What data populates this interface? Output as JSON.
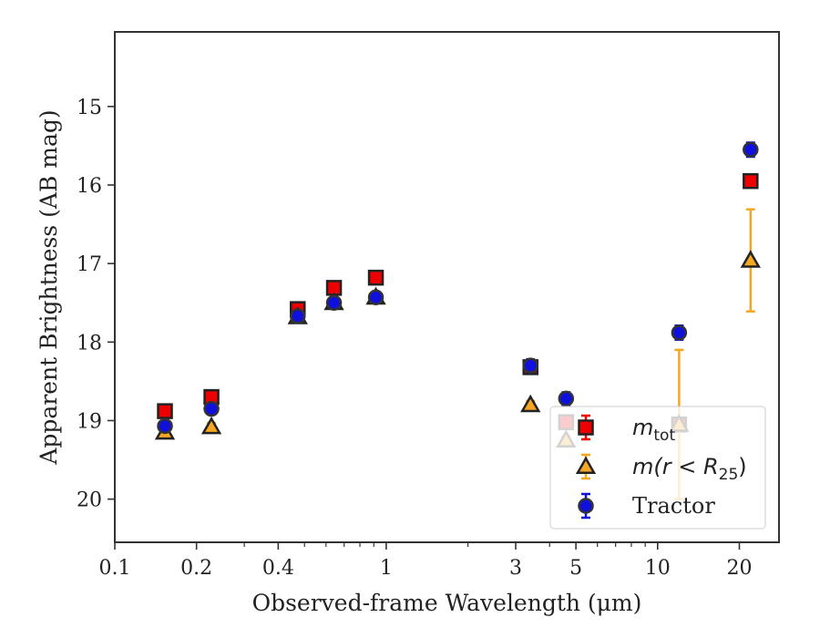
{
  "chart_data": {
    "type": "scatter",
    "xlabel": "Observed-frame Wavelength (μm)",
    "ylabel": "Apparent Brightness (AB mag)",
    "xscale": "log",
    "xlim": [
      0.1,
      28
    ],
    "ylim": [
      20.55,
      14.05
    ],
    "y_inverted": true,
    "x_ticks": [
      {
        "value": 0.1,
        "label": "0.1"
      },
      {
        "value": 0.2,
        "label": "0.2"
      },
      {
        "value": 0.4,
        "label": "0.4"
      },
      {
        "value": 1,
        "label": "1"
      },
      {
        "value": 3,
        "label": "3"
      },
      {
        "value": 5,
        "label": "5"
      },
      {
        "value": 10,
        "label": "10"
      },
      {
        "value": 20,
        "label": "20"
      }
    ],
    "y_ticks": [
      {
        "value": 15,
        "label": "15"
      },
      {
        "value": 16,
        "label": "16"
      },
      {
        "value": 17,
        "label": "17"
      },
      {
        "value": 18,
        "label": "18"
      },
      {
        "value": 19,
        "label": "19"
      },
      {
        "value": 20,
        "label": "20"
      }
    ],
    "legend_position": "lower-right",
    "series": [
      {
        "name": "m_tot",
        "legend_label": "m",
        "legend_sub": "tot",
        "marker": "square",
        "color": "#ee0000",
        "points": [
          {
            "x": 0.153,
            "y": 18.88,
            "err": 0.05
          },
          {
            "x": 0.227,
            "y": 18.7,
            "err": 0.05
          },
          {
            "x": 0.472,
            "y": 17.58,
            "err": 0.05
          },
          {
            "x": 0.642,
            "y": 17.31,
            "err": 0.05
          },
          {
            "x": 0.916,
            "y": 17.18,
            "err": 0.05
          },
          {
            "x": 3.4,
            "y": 18.32,
            "err": 0.05
          },
          {
            "x": 4.6,
            "y": 19.02,
            "err": 0.05
          },
          {
            "x": 12.0,
            "y": 19.05,
            "err": 0.05
          },
          {
            "x": 22.0,
            "y": 15.95,
            "err": 0.05
          }
        ]
      },
      {
        "name": "m(r < R25)",
        "legend_label": "m(r < R",
        "legend_sub": "25",
        "legend_suffix": ")",
        "marker": "triangle",
        "color": "#f5a623",
        "points": [
          {
            "x": 0.153,
            "y": 19.15,
            "err": 0.05
          },
          {
            "x": 0.227,
            "y": 19.08,
            "err": 0.05
          },
          {
            "x": 0.472,
            "y": 17.68,
            "err": 0.05
          },
          {
            "x": 0.642,
            "y": 17.5,
            "err": 0.05
          },
          {
            "x": 0.916,
            "y": 17.43,
            "err": 0.05
          },
          {
            "x": 3.4,
            "y": 18.8,
            "err": 0.05
          },
          {
            "x": 4.6,
            "y": 19.25,
            "err": 0.05
          },
          {
            "x": 12.0,
            "y": 19.05,
            "err": 0.95
          },
          {
            "x": 22.0,
            "y": 16.96,
            "err": 0.65
          }
        ]
      },
      {
        "name": "Tractor",
        "legend_label": "Tractor",
        "marker": "circle",
        "color": "#1010dd",
        "points": [
          {
            "x": 0.153,
            "y": 19.07,
            "err": 0.05
          },
          {
            "x": 0.227,
            "y": 18.85,
            "err": 0.05
          },
          {
            "x": 0.472,
            "y": 17.67,
            "err": 0.05
          },
          {
            "x": 0.642,
            "y": 17.5,
            "err": 0.05
          },
          {
            "x": 0.916,
            "y": 17.43,
            "err": 0.05
          },
          {
            "x": 3.4,
            "y": 18.3,
            "err": 0.08
          },
          {
            "x": 4.6,
            "y": 18.72,
            "err": 0.08
          },
          {
            "x": 12.0,
            "y": 17.88,
            "err": 0.09
          },
          {
            "x": 22.0,
            "y": 15.55,
            "err": 0.09
          }
        ]
      }
    ]
  }
}
